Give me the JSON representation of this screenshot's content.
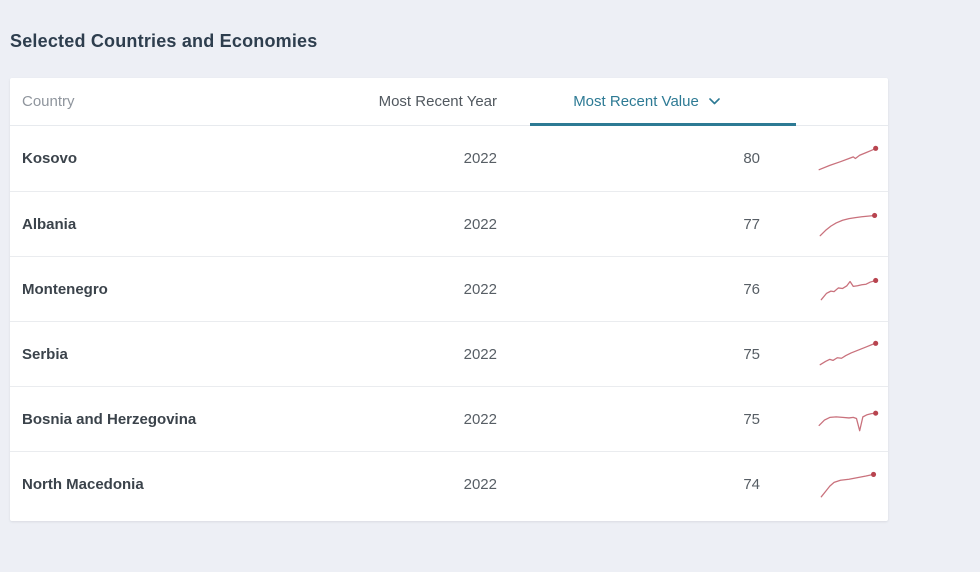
{
  "page": {
    "title": "Selected Countries and Economies"
  },
  "table": {
    "columns": {
      "country": "Country",
      "year": "Most Recent Year",
      "value": "Most Recent Value"
    },
    "sort": {
      "active_column": "Most Recent Value"
    },
    "rows": [
      {
        "country": "Kosovo",
        "year": "2022",
        "value": "80",
        "sparkline": [
          [
            2,
            25
          ],
          [
            12,
            21
          ],
          [
            22,
            17.5
          ],
          [
            30,
            14.5
          ],
          [
            34,
            13
          ],
          [
            36,
            14.5
          ],
          [
            40,
            11.5
          ],
          [
            46,
            9
          ],
          [
            52,
            6.5
          ],
          [
            55,
            5
          ]
        ]
      },
      {
        "country": "Albania",
        "year": "2022",
        "value": "77",
        "sparkline": [
          [
            3,
            26
          ],
          [
            8,
            21
          ],
          [
            13,
            17
          ],
          [
            18,
            14
          ],
          [
            24,
            11.5
          ],
          [
            30,
            10
          ],
          [
            36,
            9
          ],
          [
            42,
            8.2
          ],
          [
            48,
            7.6
          ],
          [
            54,
            7
          ]
        ]
      },
      {
        "country": "Montenegro",
        "year": "2022",
        "value": "76",
        "sparkline": [
          [
            4,
            25
          ],
          [
            9,
            19
          ],
          [
            13,
            17
          ],
          [
            16,
            17.5
          ],
          [
            20,
            14
          ],
          [
            24,
            14.5
          ],
          [
            28,
            12
          ],
          [
            31,
            8
          ],
          [
            34,
            12.5
          ],
          [
            38,
            12
          ],
          [
            42,
            11
          ],
          [
            46,
            10.5
          ],
          [
            50,
            8.5
          ],
          [
            55,
            7
          ]
        ]
      },
      {
        "country": "Serbia",
        "year": "2022",
        "value": "75",
        "sparkline": [
          [
            3,
            25
          ],
          [
            8,
            22
          ],
          [
            12,
            20
          ],
          [
            15,
            21
          ],
          [
            19,
            18.5
          ],
          [
            23,
            19
          ],
          [
            27,
            16.5
          ],
          [
            32,
            14
          ],
          [
            37,
            12
          ],
          [
            42,
            10
          ],
          [
            47,
            8
          ],
          [
            52,
            6
          ],
          [
            55,
            5
          ]
        ]
      },
      {
        "country": "Bosnia and Herzegovina",
        "year": "2022",
        "value": "75",
        "sparkline": [
          [
            2,
            21
          ],
          [
            7,
            16
          ],
          [
            12,
            13.5
          ],
          [
            18,
            13
          ],
          [
            24,
            13.5
          ],
          [
            30,
            14
          ],
          [
            34,
            13.5
          ],
          [
            37,
            14.5
          ],
          [
            40,
            26
          ],
          [
            43,
            13
          ],
          [
            47,
            11
          ],
          [
            51,
            10
          ],
          [
            55,
            9.5
          ]
        ]
      },
      {
        "country": "North Macedonia",
        "year": "2022",
        "value": "74",
        "sparkline": [
          [
            4,
            27
          ],
          [
            8,
            22
          ],
          [
            12,
            17
          ],
          [
            16,
            13.5
          ],
          [
            22,
            11.5
          ],
          [
            30,
            10.5
          ],
          [
            38,
            9
          ],
          [
            46,
            7.5
          ],
          [
            53,
            6
          ]
        ]
      }
    ]
  },
  "colors": {
    "page_background": "#edeff5",
    "accent_teal": "#2d7a94",
    "sparkline_line": "#c9717c",
    "sparkline_dot": "#b8444f"
  }
}
